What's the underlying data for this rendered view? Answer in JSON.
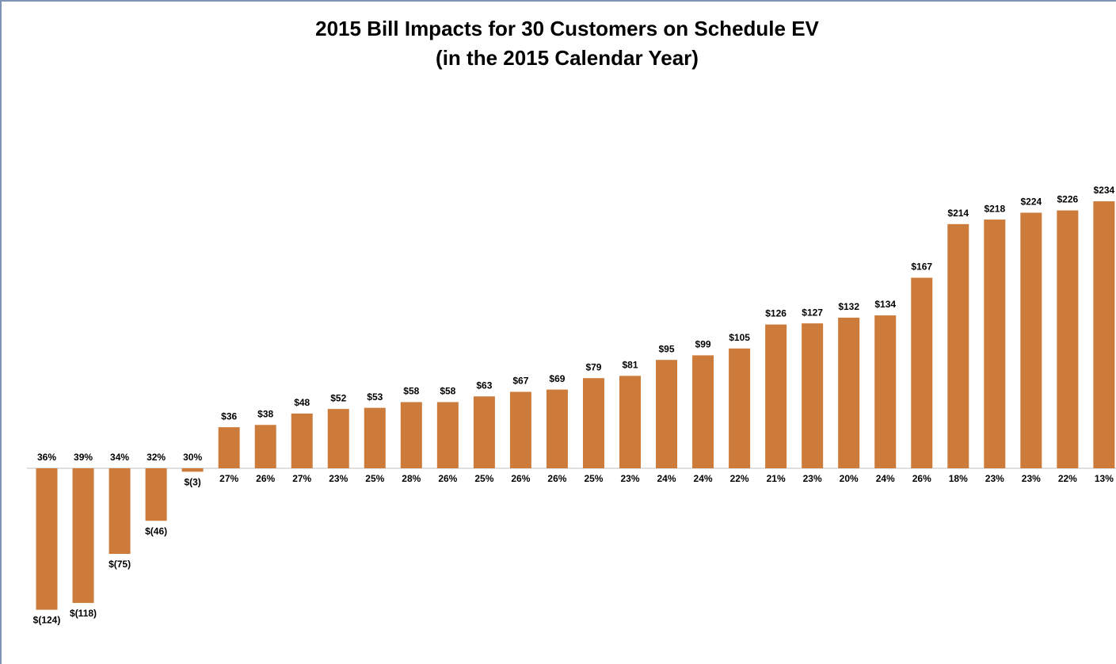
{
  "chart_data": {
    "type": "bar",
    "title": "2015 Bill Impacts for 30 Customers on Schedule EV",
    "subtitle": "(in the 2015 Calendar Year)",
    "values": [
      -124,
      -118,
      -75,
      -46,
      -3,
      36,
      38,
      48,
      52,
      53,
      58,
      58,
      63,
      67,
      69,
      79,
      81,
      95,
      99,
      105,
      126,
      127,
      132,
      134,
      167,
      214,
      218,
      224,
      226,
      234
    ],
    "value_labels": [
      "$(124)",
      "$(118)",
      "$(75)",
      "$(46)",
      "$(3)",
      "$36",
      "$38",
      "$48",
      "$52",
      "$53",
      "$58",
      "$58",
      "$63",
      "$67",
      "$69",
      "$79",
      "$81",
      "$95",
      "$99",
      "$105",
      "$126",
      "$127",
      "$132",
      "$134",
      "$167",
      "$214",
      "$218",
      "$224",
      "$226",
      "$234"
    ],
    "percent_labels": [
      "36%",
      "39%",
      "34%",
      "32%",
      "30%",
      "27%",
      "26%",
      "27%",
      "23%",
      "25%",
      "28%",
      "26%",
      "25%",
      "26%",
      "26%",
      "25%",
      "23%",
      "24%",
      "24%",
      "22%",
      "21%",
      "23%",
      "20%",
      "24%",
      "26%",
      "18%",
      "23%",
      "23%",
      "22%",
      "13%"
    ],
    "color": "#cd7b3a",
    "ylim": [
      -150,
      300
    ]
  }
}
